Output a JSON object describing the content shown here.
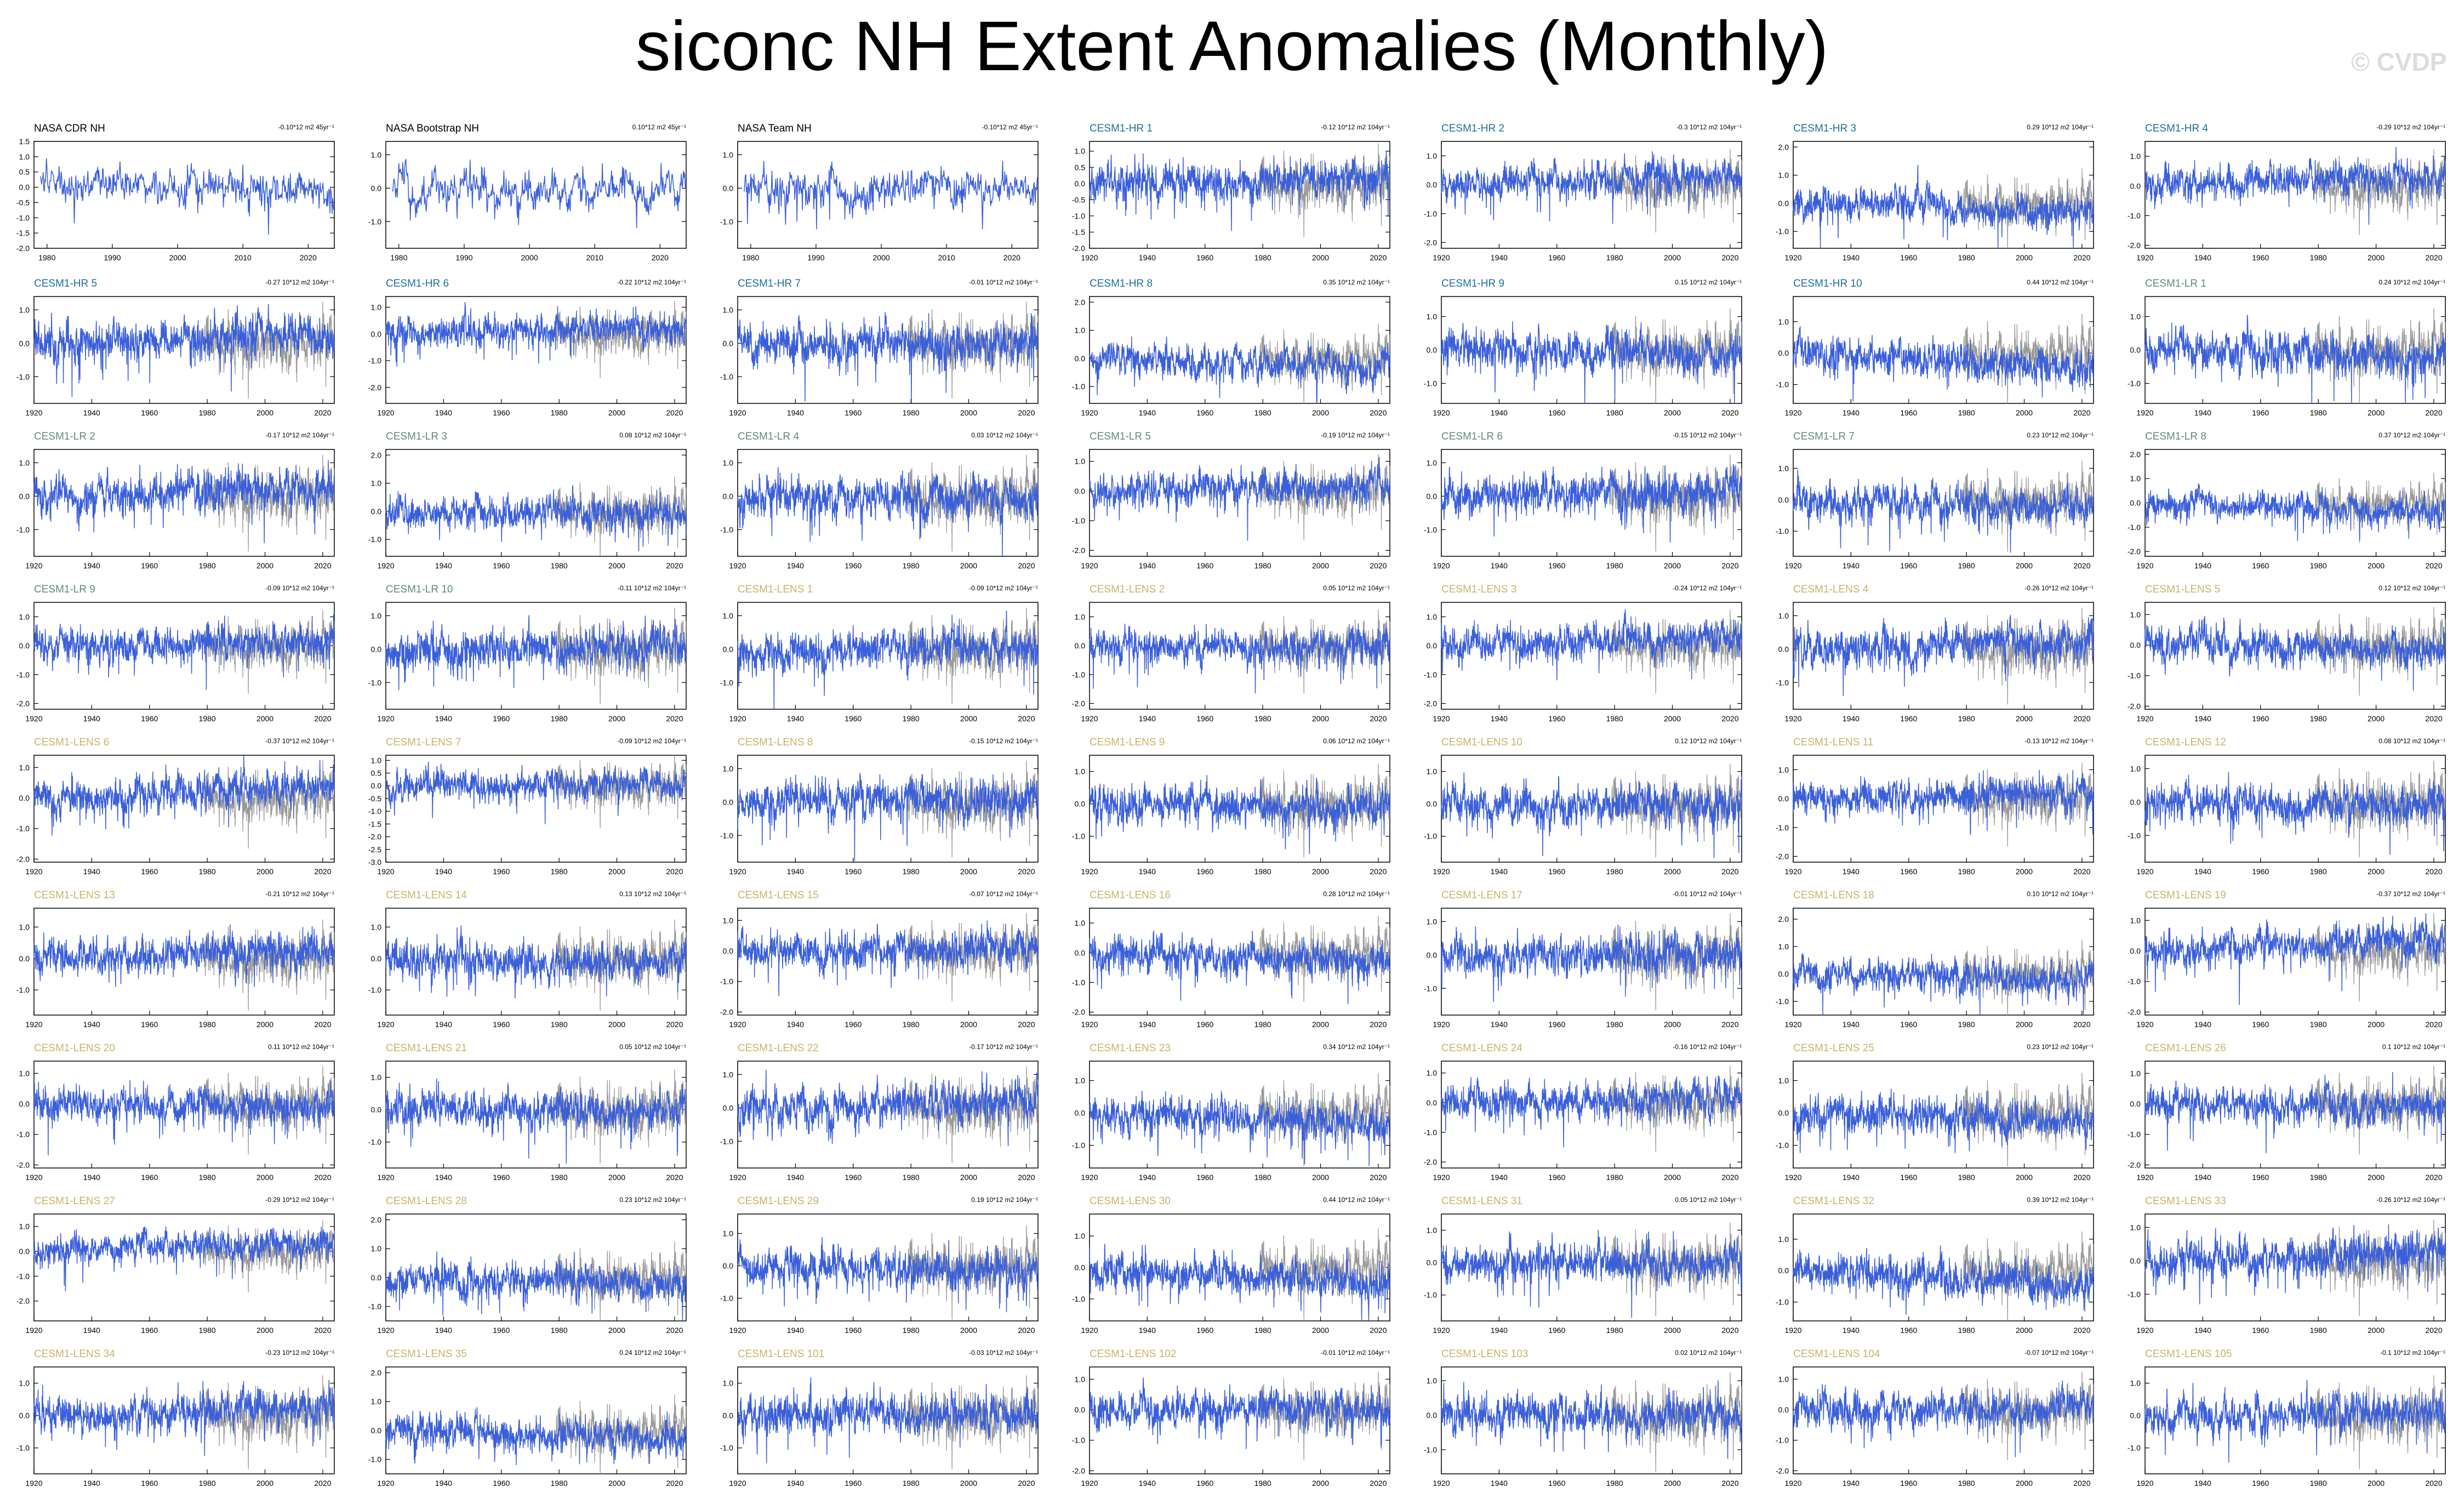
{
  "title": "siconc NH Extent Anomalies (Monthly)",
  "watermark": "© CVDP",
  "colors": {
    "model_line": "#3A5FD9",
    "obs_background_line": "#9A9A9A",
    "obs_label": "#000000",
    "hr_label": "#1F6F9A",
    "lr_label": "#5E8C78",
    "lens_label": "#C8B46A"
  },
  "chart_data": {
    "type": "line",
    "grid": false,
    "legend": "none",
    "panels_per_row": 7,
    "obs_x_ticks": [
      1980,
      1990,
      2000,
      2010,
      2020
    ],
    "model_x_ticks": [
      1920,
      1940,
      1960,
      1980,
      2000,
      2020
    ],
    "panels": [
      {
        "name": "NASA CDR NH",
        "group": "obs",
        "trend": "-0.10*12 m2 45yr⁻¹",
        "y_ticks": [
          "1.5",
          "1.0",
          "0.5",
          "0.0",
          "-0.5",
          "-1.0",
          "-1.5",
          "-2.0"
        ],
        "ylim": [
          -2.0,
          1.5
        ]
      },
      {
        "name": "NASA Bootstrap NH",
        "group": "obs",
        "trend": "0.10*12 m2 45yr⁻¹",
        "y_ticks": [
          "1.0",
          "0.0",
          "-1.0"
        ],
        "ylim": [
          -1.8,
          1.4
        ]
      },
      {
        "name": "NASA Team NH",
        "group": "obs",
        "trend": "-0.10*12 m2 45yr⁻¹",
        "y_ticks": [
          "1.0",
          "0.0",
          "-1.0"
        ],
        "ylim": [
          -1.8,
          1.4
        ]
      },
      {
        "name": "CESM1-HR 1",
        "group": "hr",
        "trend": "-0.12 10*12 m2 104yr⁻¹",
        "y_ticks": [
          "1.0",
          "0.5",
          "0.0",
          "-0.5",
          "-1.0",
          "-1.5",
          "-2.0"
        ],
        "ylim": [
          -2.0,
          1.3
        ]
      },
      {
        "name": "CESM1-HR 2",
        "group": "hr",
        "trend": "-0.3 10*12 m2 104yr⁻¹",
        "y_ticks": [
          "1.0",
          "0.0",
          "-1.0",
          "-2.0"
        ],
        "ylim": [
          -2.2,
          1.5
        ]
      },
      {
        "name": "CESM1-HR 3",
        "group": "hr",
        "trend": "0.29 10*12 m2 104yr⁻¹",
        "y_ticks": [
          "2.0",
          "1.0",
          "0.0",
          "-1.0"
        ],
        "ylim": [
          -1.6,
          2.2
        ]
      },
      {
        "name": "CESM1-HR 4",
        "group": "hr",
        "trend": "-0.29 10*12 m2 104yr⁻¹",
        "y_ticks": [
          "1.0",
          "0.0",
          "-1.0",
          "-2.0"
        ],
        "ylim": [
          -2.1,
          1.5
        ]
      },
      {
        "name": "CESM1-HR 5",
        "group": "hr",
        "trend": "-0.27 10*12 m2 104yr⁻¹",
        "y_ticks": [
          "1.0",
          "0.0",
          "-1.0"
        ],
        "ylim": [
          -1.8,
          1.4
        ]
      },
      {
        "name": "CESM1-HR 6",
        "group": "hr",
        "trend": "-0.22 10*12 m2 104yr⁻¹",
        "y_ticks": [
          "1.0",
          "0.0",
          "-1.0",
          "-2.0"
        ],
        "ylim": [
          -2.6,
          1.4
        ]
      },
      {
        "name": "CESM1-HR 7",
        "group": "hr",
        "trend": "-0.01 10*12 m2 104yr⁻¹",
        "y_ticks": [
          "1.0",
          "0.0",
          "-1.0"
        ],
        "ylim": [
          -1.8,
          1.4
        ]
      },
      {
        "name": "CESM1-HR 8",
        "group": "hr",
        "trend": "0.35 10*12 m2 104yr⁻¹",
        "y_ticks": [
          "2.0",
          "1.0",
          "0.0",
          "-1.0"
        ],
        "ylim": [
          -1.6,
          2.2
        ]
      },
      {
        "name": "CESM1-HR 9",
        "group": "hr",
        "trend": "0.15 10*12 m2 104yr⁻¹",
        "y_ticks": [
          "1.0",
          "0.0",
          "-1.0"
        ],
        "ylim": [
          -1.6,
          1.6
        ]
      },
      {
        "name": "CESM1-HR 10",
        "group": "hr",
        "trend": "0.44 10*12 m2 104yr⁻¹",
        "y_ticks": [
          "1.0",
          "0.0",
          "-1.0"
        ],
        "ylim": [
          -1.6,
          1.8
        ]
      },
      {
        "name": "CESM1-LR 1",
        "group": "lr",
        "trend": "0.24 10*12 m2 104yr⁻¹",
        "y_ticks": [
          "1.0",
          "0.0",
          "-1.0"
        ],
        "ylim": [
          -1.6,
          1.6
        ]
      },
      {
        "name": "CESM1-LR 2",
        "group": "lr",
        "trend": "-0.17 10*12 m2 104yr⁻¹",
        "y_ticks": [
          "1.0",
          "0.0",
          "-1.0"
        ],
        "ylim": [
          -1.8,
          1.4
        ]
      },
      {
        "name": "CESM1-LR 3",
        "group": "lr",
        "trend": "0.08 10*12 m2 104yr⁻¹",
        "y_ticks": [
          "2.0",
          "1.0",
          "0.0",
          "-1.0"
        ],
        "ylim": [
          -1.6,
          2.2
        ]
      },
      {
        "name": "CESM1-LR 4",
        "group": "lr",
        "trend": "0.03 10*12 m2 104yr⁻¹",
        "y_ticks": [
          "1.0",
          "0.0",
          "-1.0"
        ],
        "ylim": [
          -1.8,
          1.4
        ]
      },
      {
        "name": "CESM1-LR 5",
        "group": "lr",
        "trend": "-0.19 10*12 m2 104yr⁻¹",
        "y_ticks": [
          "1.0",
          "0.0",
          "-1.0",
          "-2.0"
        ],
        "ylim": [
          -2.2,
          1.4
        ]
      },
      {
        "name": "CESM1-LR 6",
        "group": "lr",
        "trend": "-0.15 10*12 m2 104yr⁻¹",
        "y_ticks": [
          "1.0",
          "0.0",
          "-1.0"
        ],
        "ylim": [
          -1.8,
          1.4
        ]
      },
      {
        "name": "CESM1-LR 7",
        "group": "lr",
        "trend": "0.23 10*12 m2 104yr⁻¹",
        "y_ticks": [
          "1.0",
          "0.0",
          "-1.0"
        ],
        "ylim": [
          -1.8,
          1.6
        ]
      },
      {
        "name": "CESM1-LR 8",
        "group": "lr",
        "trend": "0.37 10*12 m2 104yr⁻¹",
        "y_ticks": [
          "2.0",
          "1.0",
          "0.0",
          "-1.0",
          "-2.0"
        ],
        "ylim": [
          -2.2,
          2.2
        ]
      },
      {
        "name": "CESM1-LR 9",
        "group": "lr",
        "trend": "-0.09 10*12 m2 104yr⁻¹",
        "y_ticks": [
          "1.0",
          "0.0",
          "-1.0",
          "-2.0"
        ],
        "ylim": [
          -2.2,
          1.5
        ]
      },
      {
        "name": "CESM1-LR 10",
        "group": "lr",
        "trend": "-0.11 10*12 m2 104yr⁻¹",
        "y_ticks": [
          "1.0",
          "0.0",
          "-1.0"
        ],
        "ylim": [
          -1.8,
          1.4
        ]
      },
      {
        "name": "CESM1-LENS 1",
        "group": "lens",
        "trend": "-0.09 10*12 m2 104yr⁻¹",
        "y_ticks": [
          "1.0",
          "0.0",
          "-1.0"
        ],
        "ylim": [
          -1.8,
          1.4
        ]
      },
      {
        "name": "CESM1-LENS 2",
        "group": "lens",
        "trend": "0.05 10*12 m2 104yr⁻¹",
        "y_ticks": [
          "1.0",
          "0.0",
          "-1.0",
          "-2.0"
        ],
        "ylim": [
          -2.2,
          1.5
        ]
      },
      {
        "name": "CESM1-LENS 3",
        "group": "lens",
        "trend": "-0.24 10*12 m2 104yr⁻¹",
        "y_ticks": [
          "1.0",
          "0.0",
          "-1.0",
          "-2.0"
        ],
        "ylim": [
          -2.2,
          1.5
        ]
      },
      {
        "name": "CESM1-LENS 4",
        "group": "lens",
        "trend": "-0.26 10*12 m2 104yr⁻¹",
        "y_ticks": [
          "1.0",
          "0.0",
          "-1.0"
        ],
        "ylim": [
          -1.8,
          1.4
        ]
      },
      {
        "name": "CESM1-LENS 5",
        "group": "lens",
        "trend": "0.12 10*12 m2 104yr⁻¹",
        "y_ticks": [
          "1.0",
          "0.0",
          "-1.0",
          "-2.0"
        ],
        "ylim": [
          -2.1,
          1.4
        ]
      },
      {
        "name": "CESM1-LENS 6",
        "group": "lens",
        "trend": "-0.37 10*12 m2 104yr⁻¹",
        "y_ticks": [
          "1.0",
          "0.0",
          "-1.0",
          "-2.0"
        ],
        "ylim": [
          -2.1,
          1.4
        ]
      },
      {
        "name": "CESM1-LENS 7",
        "group": "lens",
        "trend": "-0.09 10*12 m2 104yr⁻¹",
        "y_ticks": [
          "1.0",
          "0.5",
          "0.0",
          "-0.5",
          "-1.0",
          "-1.5",
          "-2.0",
          "-2.5",
          "-3.0"
        ],
        "ylim": [
          -3.0,
          1.2
        ]
      },
      {
        "name": "CESM1-LENS 8",
        "group": "lens",
        "trend": "-0.15 10*12 m2 104yr⁻¹",
        "y_ticks": [
          "1.0",
          "0.0",
          "-1.0"
        ],
        "ylim": [
          -1.8,
          1.4
        ]
      },
      {
        "name": "CESM1-LENS 9",
        "group": "lens",
        "trend": "0.06 10*12 m2 104yr⁻¹",
        "y_ticks": [
          "1.0",
          "0.0",
          "-1.0"
        ],
        "ylim": [
          -1.8,
          1.5
        ]
      },
      {
        "name": "CESM1-LENS 10",
        "group": "lens",
        "trend": "0.12 10*12 m2 104yr⁻¹",
        "y_ticks": [
          "1.0",
          "0.0",
          "-1.0"
        ],
        "ylim": [
          -1.8,
          1.5
        ]
      },
      {
        "name": "CESM1-LENS 11",
        "group": "lens",
        "trend": "-0.13 10*12 m2 104yr⁻¹",
        "y_ticks": [
          "1.0",
          "0.0",
          "-1.0",
          "-2.0"
        ],
        "ylim": [
          -2.2,
          1.5
        ]
      },
      {
        "name": "CESM1-LENS 12",
        "group": "lens",
        "trend": "0.08 10*12 m2 104yr⁻¹",
        "y_ticks": [
          "1.0",
          "0.0",
          "-1.0"
        ],
        "ylim": [
          -1.8,
          1.4
        ]
      },
      {
        "name": "CESM1-LENS 13",
        "group": "lens",
        "trend": "-0.21 10*12 m2 104yr⁻¹",
        "y_ticks": [
          "1.0",
          "0.0",
          "-1.0"
        ],
        "ylim": [
          -1.8,
          1.6
        ]
      },
      {
        "name": "CESM1-LENS 14",
        "group": "lens",
        "trend": "0.13 10*12 m2 104yr⁻¹",
        "y_ticks": [
          "1.0",
          "0.0",
          "-1.0"
        ],
        "ylim": [
          -1.8,
          1.6
        ]
      },
      {
        "name": "CESM1-LENS 15",
        "group": "lens",
        "trend": "-0.07 10*12 m2 104yr⁻¹",
        "y_ticks": [
          "1.0",
          "0.0",
          "-1.0",
          "-2.0"
        ],
        "ylim": [
          -2.1,
          1.4
        ]
      },
      {
        "name": "CESM1-LENS 16",
        "group": "lens",
        "trend": "0.28 10*12 m2 104yr⁻¹",
        "y_ticks": [
          "1.0",
          "0.0",
          "-1.0",
          "-2.0"
        ],
        "ylim": [
          -2.1,
          1.5
        ]
      },
      {
        "name": "CESM1-LENS 17",
        "group": "lens",
        "trend": "-0.01 10*12 m2 104yr⁻¹",
        "y_ticks": [
          "1.0",
          "0.0",
          "-1.0"
        ],
        "ylim": [
          -1.8,
          1.4
        ]
      },
      {
        "name": "CESM1-LENS 18",
        "group": "lens",
        "trend": "0.10 10*12 m2 104yr⁻¹",
        "y_ticks": [
          "2.0",
          "1.0",
          "0.0",
          "-1.0"
        ],
        "ylim": [
          -1.5,
          2.4
        ]
      },
      {
        "name": "CESM1-LENS 19",
        "group": "lens",
        "trend": "-0.37 10*12 m2 104yr⁻¹",
        "y_ticks": [
          "1.0",
          "0.0",
          "-1.0",
          "-2.0"
        ],
        "ylim": [
          -2.1,
          1.4
        ]
      },
      {
        "name": "CESM1-LENS 20",
        "group": "lens",
        "trend": "0.11 10*12 m2 104yr⁻¹",
        "y_ticks": [
          "1.0",
          "0.0",
          "-1.0",
          "-2.0"
        ],
        "ylim": [
          -2.1,
          1.4
        ]
      },
      {
        "name": "CESM1-LENS 21",
        "group": "lens",
        "trend": "0.05 10*12 m2 104yr⁻¹",
        "y_ticks": [
          "1.0",
          "0.0",
          "-1.0"
        ],
        "ylim": [
          -1.8,
          1.5
        ]
      },
      {
        "name": "CESM1-LENS 22",
        "group": "lens",
        "trend": "-0.17 10*12 m2 104yr⁻¹",
        "y_ticks": [
          "1.0",
          "0.0",
          "-1.0"
        ],
        "ylim": [
          -1.8,
          1.4
        ]
      },
      {
        "name": "CESM1-LENS 23",
        "group": "lens",
        "trend": "0.34 10*12 m2 104yr⁻¹",
        "y_ticks": [
          "1.0",
          "0.0",
          "-1.0"
        ],
        "ylim": [
          -1.7,
          1.6
        ]
      },
      {
        "name": "CESM1-LENS 24",
        "group": "lens",
        "trend": "-0.16 10*12 m2 104yr⁻¹",
        "y_ticks": [
          "1.0",
          "0.0",
          "-1.0",
          "-2.0"
        ],
        "ylim": [
          -2.2,
          1.4
        ]
      },
      {
        "name": "CESM1-LENS 25",
        "group": "lens",
        "trend": "0.23 10*12 m2 104yr⁻¹",
        "y_ticks": [
          "1.0",
          "0.0",
          "-1.0"
        ],
        "ylim": [
          -1.7,
          1.6
        ]
      },
      {
        "name": "CESM1-LENS 26",
        "group": "lens",
        "trend": "0.1 10*12 m2 104yr⁻¹",
        "y_ticks": [
          "1.0",
          "0.0",
          "-1.0",
          "-2.0"
        ],
        "ylim": [
          -2.1,
          1.4
        ]
      },
      {
        "name": "CESM1-LENS 27",
        "group": "lens",
        "trend": "-0.29 10*12 m2 104yr⁻¹",
        "y_ticks": [
          "1.0",
          "0.0",
          "-1.0",
          "-2.0"
        ],
        "ylim": [
          -2.8,
          1.5
        ]
      },
      {
        "name": "CESM1-LENS 28",
        "group": "lens",
        "trend": "0.23 10*12 m2 104yr⁻¹",
        "y_ticks": [
          "2.0",
          "1.0",
          "0.0",
          "-1.0"
        ],
        "ylim": [
          -1.5,
          2.2
        ]
      },
      {
        "name": "CESM1-LENS 29",
        "group": "lens",
        "trend": "0.19 10*12 m2 104yr⁻¹",
        "y_ticks": [
          "1.0",
          "0.0",
          "-1.0"
        ],
        "ylim": [
          -1.7,
          1.6
        ]
      },
      {
        "name": "CESM1-LENS 30",
        "group": "lens",
        "trend": "0.44 10*12 m2 104yr⁻¹",
        "y_ticks": [
          "1.0",
          "0.0",
          "-1.0"
        ],
        "ylim": [
          -1.7,
          1.7
        ]
      },
      {
        "name": "CESM1-LENS 31",
        "group": "lens",
        "trend": "0.05 10*12 m2 104yr⁻¹",
        "y_ticks": [
          "1.0",
          "0.0",
          "-1.0"
        ],
        "ylim": [
          -1.8,
          1.5
        ]
      },
      {
        "name": "CESM1-LENS 32",
        "group": "lens",
        "trend": "0.39 10*12 m2 104yr⁻¹",
        "y_ticks": [
          "1.0",
          "0.0",
          "-1.0"
        ],
        "ylim": [
          -1.6,
          1.8
        ]
      },
      {
        "name": "CESM1-LENS 33",
        "group": "lens",
        "trend": "-0.26 10*12 m2 104yr⁻¹",
        "y_ticks": [
          "1.0",
          "0.0",
          "-1.0"
        ],
        "ylim": [
          -1.8,
          1.4
        ]
      },
      {
        "name": "CESM1-LENS 34",
        "group": "lens",
        "trend": "-0.23 10*12 m2 104yr⁻¹",
        "y_ticks": [
          "1.0",
          "0.0",
          "-1.0"
        ],
        "ylim": [
          -1.8,
          1.5
        ]
      },
      {
        "name": "CESM1-LENS 35",
        "group": "lens",
        "trend": "0.24 10*12 m2 104yr⁻¹",
        "y_ticks": [
          "2.0",
          "1.0",
          "0.0",
          "-1.0"
        ],
        "ylim": [
          -1.5,
          2.2
        ]
      },
      {
        "name": "CESM1-LENS 101",
        "group": "lens",
        "trend": "-0.03 10*12 m2 104yr⁻¹",
        "y_ticks": [
          "1.0",
          "0.0",
          "-1.0"
        ],
        "ylim": [
          -1.8,
          1.5
        ]
      },
      {
        "name": "CESM1-LENS 102",
        "group": "lens",
        "trend": "-0.01 10*12 m2 104yr⁻¹",
        "y_ticks": [
          "1.0",
          "0.0",
          "-1.0",
          "-2.0"
        ],
        "ylim": [
          -2.1,
          1.4
        ]
      },
      {
        "name": "CESM1-LENS 103",
        "group": "lens",
        "trend": "0.02 10*12 m2 104yr⁻¹",
        "y_ticks": [
          "1.0",
          "0.0",
          "-1.0"
        ],
        "ylim": [
          -1.7,
          1.4
        ]
      },
      {
        "name": "CESM1-LENS 104",
        "group": "lens",
        "trend": "-0.07 10*12 m2 104yr⁻¹",
        "y_ticks": [
          "1.0",
          "0.0",
          "-1.0",
          "-2.0"
        ],
        "ylim": [
          -2.1,
          1.4
        ]
      },
      {
        "name": "CESM1-LENS 105",
        "group": "lens",
        "trend": "-0.1 10*12 m2 104yr⁻¹",
        "y_ticks": [
          "1.0",
          "0.0",
          "-1.0"
        ],
        "ylim": [
          -1.8,
          1.5
        ]
      }
    ]
  }
}
